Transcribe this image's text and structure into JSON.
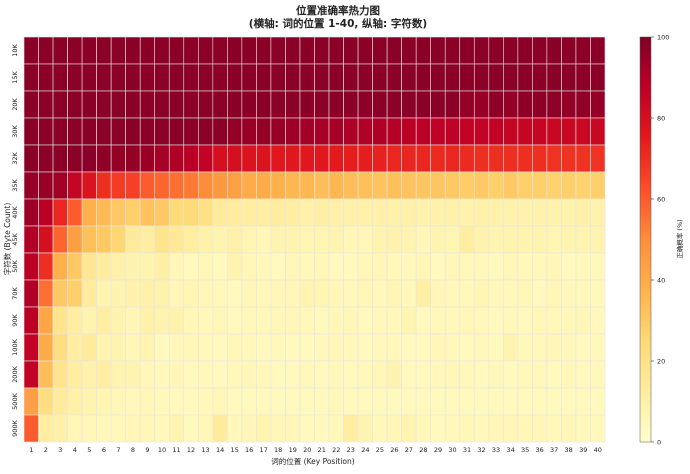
{
  "chart_data": {
    "type": "heatmap",
    "title": "位置准确率热力图",
    "subtitle": "(横轴: 词的位置 1-40, 纵轴: 字符数)",
    "xlabel": "词的位置 (Key Position)",
    "ylabel": "字符数 (Byte Count)",
    "colorbar_label": "正确概率 (%)",
    "zlim": [
      0,
      100
    ],
    "colorbar_ticks": [
      "0",
      "20",
      "40",
      "60",
      "80",
      "100"
    ],
    "colormap": [
      "#ffffcc",
      "#ffeda0",
      "#fed976",
      "#feb24c",
      "#fd8d3c",
      "#fc4e2a",
      "#e31a1c",
      "#bd0026",
      "#800026"
    ],
    "x_categories": [
      "1",
      "2",
      "3",
      "4",
      "5",
      "6",
      "7",
      "8",
      "9",
      "10",
      "11",
      "12",
      "13",
      "14",
      "15",
      "16",
      "17",
      "18",
      "19",
      "20",
      "21",
      "22",
      "23",
      "24",
      "25",
      "26",
      "27",
      "28",
      "29",
      "30",
      "31",
      "32",
      "33",
      "34",
      "35",
      "36",
      "37",
      "38",
      "39",
      "40"
    ],
    "y_categories": [
      "10K",
      "15K",
      "20K",
      "30K",
      "32K",
      "35K",
      "40K",
      "45K",
      "50K",
      "70K",
      "90K",
      "100K",
      "200K",
      "500K",
      "900K"
    ],
    "values": [
      [
        98,
        98,
        98,
        98,
        98,
        98,
        98,
        98,
        98,
        98,
        98,
        98,
        98,
        98,
        98,
        98,
        98,
        98,
        98,
        98,
        98,
        98,
        98,
        98,
        98,
        98,
        98,
        98,
        98,
        98,
        98,
        98,
        98,
        98,
        98,
        98,
        98,
        98,
        98,
        98
      ],
      [
        98,
        98,
        98,
        98,
        98,
        98,
        98,
        98,
        98,
        98,
        98,
        98,
        98,
        98,
        98,
        98,
        98,
        98,
        98,
        98,
        98,
        98,
        98,
        98,
        98,
        98,
        98,
        98,
        98,
        98,
        98,
        98,
        98,
        98,
        98,
        98,
        98,
        98,
        98,
        98
      ],
      [
        98,
        98,
        98,
        98,
        98,
        98,
        98,
        98,
        98,
        98,
        98,
        98,
        98,
        98,
        98,
        98,
        98,
        98,
        98,
        98,
        98,
        98,
        98,
        98,
        98,
        98,
        98,
        98,
        98,
        98,
        96,
        95,
        97,
        96,
        97,
        97,
        97,
        96,
        97,
        96
      ],
      [
        98,
        98,
        98,
        98,
        98,
        98,
        98,
        98,
        98,
        98,
        98,
        98,
        98,
        98,
        96,
        95,
        96,
        95,
        94,
        93,
        92,
        92,
        91,
        90,
        90,
        89,
        88,
        88,
        87,
        87,
        86,
        86,
        86,
        85,
        85,
        85,
        84,
        84,
        84,
        84
      ],
      [
        98,
        98,
        98,
        98,
        98,
        97,
        96,
        96,
        95,
        92,
        90,
        88,
        86,
        80,
        80,
        78,
        78,
        76,
        76,
        76,
        76,
        75,
        74,
        74,
        73,
        72,
        72,
        72,
        71,
        72,
        71,
        70,
        70,
        70,
        70,
        70,
        69,
        69,
        69,
        69
      ],
      [
        96,
        95,
        93,
        85,
        78,
        70,
        67,
        66,
        60,
        58,
        56,
        54,
        50,
        46,
        44,
        40,
        40,
        38,
        36,
        36,
        34,
        36,
        34,
        33,
        32,
        33,
        32,
        31,
        31,
        30,
        29,
        30,
        28,
        30,
        28,
        28,
        27,
        28,
        27,
        28
      ],
      [
        94,
        88,
        72,
        60,
        38,
        35,
        30,
        28,
        32,
        30,
        24,
        24,
        20,
        14,
        13,
        12,
        12,
        13,
        12,
        10,
        11,
        10,
        10,
        10,
        10,
        10,
        10,
        9,
        9,
        10,
        9,
        10,
        10,
        9,
        9,
        9,
        9,
        9,
        10,
        9
      ],
      [
        90,
        80,
        58,
        44,
        33,
        30,
        26,
        14,
        12,
        18,
        15,
        12,
        10,
        8,
        10,
        7,
        6,
        8,
        8,
        7,
        7,
        8,
        6,
        6,
        8,
        9,
        8,
        6,
        8,
        7,
        12,
        9,
        8,
        8,
        8,
        8,
        7,
        8,
        8,
        8
      ],
      [
        88,
        70,
        38,
        30,
        16,
        13,
        10,
        8,
        8,
        11,
        6,
        4,
        6,
        4,
        8,
        6,
        5,
        4,
        6,
        5,
        6,
        4,
        4,
        6,
        6,
        5,
        5,
        6,
        4,
        6,
        5,
        5,
        4,
        6,
        5,
        5,
        6,
        4,
        5,
        5
      ],
      [
        90,
        56,
        30,
        28,
        13,
        8,
        8,
        9,
        10,
        9,
        6,
        7,
        6,
        5,
        4,
        6,
        5,
        6,
        6,
        8,
        7,
        6,
        5,
        6,
        5,
        7,
        5,
        11,
        6,
        5,
        5,
        7,
        5,
        5,
        6,
        4,
        6,
        5,
        5,
        5
      ],
      [
        88,
        42,
        18,
        12,
        8,
        12,
        8,
        6,
        10,
        8,
        9,
        6,
        5,
        6,
        4,
        5,
        5,
        6,
        6,
        5,
        4,
        6,
        6,
        4,
        5,
        5,
        7,
        4,
        5,
        5,
        6,
        5,
        4,
        5,
        4,
        6,
        5,
        5,
        6,
        5
      ],
      [
        86,
        40,
        22,
        12,
        14,
        8,
        8,
        6,
        8,
        4,
        5,
        6,
        5,
        4,
        6,
        5,
        4,
        5,
        4,
        4,
        5,
        6,
        5,
        4,
        5,
        5,
        4,
        4,
        6,
        5,
        4,
        5,
        4,
        8,
        5,
        5,
        6,
        5,
        4,
        5
      ],
      [
        86,
        34,
        18,
        12,
        9,
        12,
        8,
        8,
        6,
        5,
        6,
        4,
        5,
        4,
        5,
        6,
        5,
        4,
        4,
        5,
        4,
        5,
        4,
        5,
        6,
        8,
        4,
        4,
        5,
        6,
        5,
        4,
        5,
        4,
        5,
        5,
        4,
        5,
        4,
        5
      ],
      [
        44,
        22,
        14,
        10,
        8,
        7,
        6,
        5,
        6,
        5,
        4,
        4,
        5,
        6,
        4,
        4,
        4,
        4,
        4,
        4,
        4,
        5,
        4,
        4,
        4,
        4,
        4,
        4,
        4,
        4,
        4,
        4,
        4,
        4,
        4,
        4,
        4,
        4,
        4,
        4
      ],
      [
        60,
        12,
        10,
        6,
        6,
        5,
        5,
        6,
        6,
        5,
        8,
        4,
        6,
        14,
        5,
        6,
        8,
        6,
        6,
        4,
        4,
        5,
        12,
        8,
        5,
        6,
        8,
        5,
        4,
        5,
        6,
        5,
        6,
        6,
        6,
        6,
        5,
        6,
        5,
        5
      ]
    ]
  }
}
